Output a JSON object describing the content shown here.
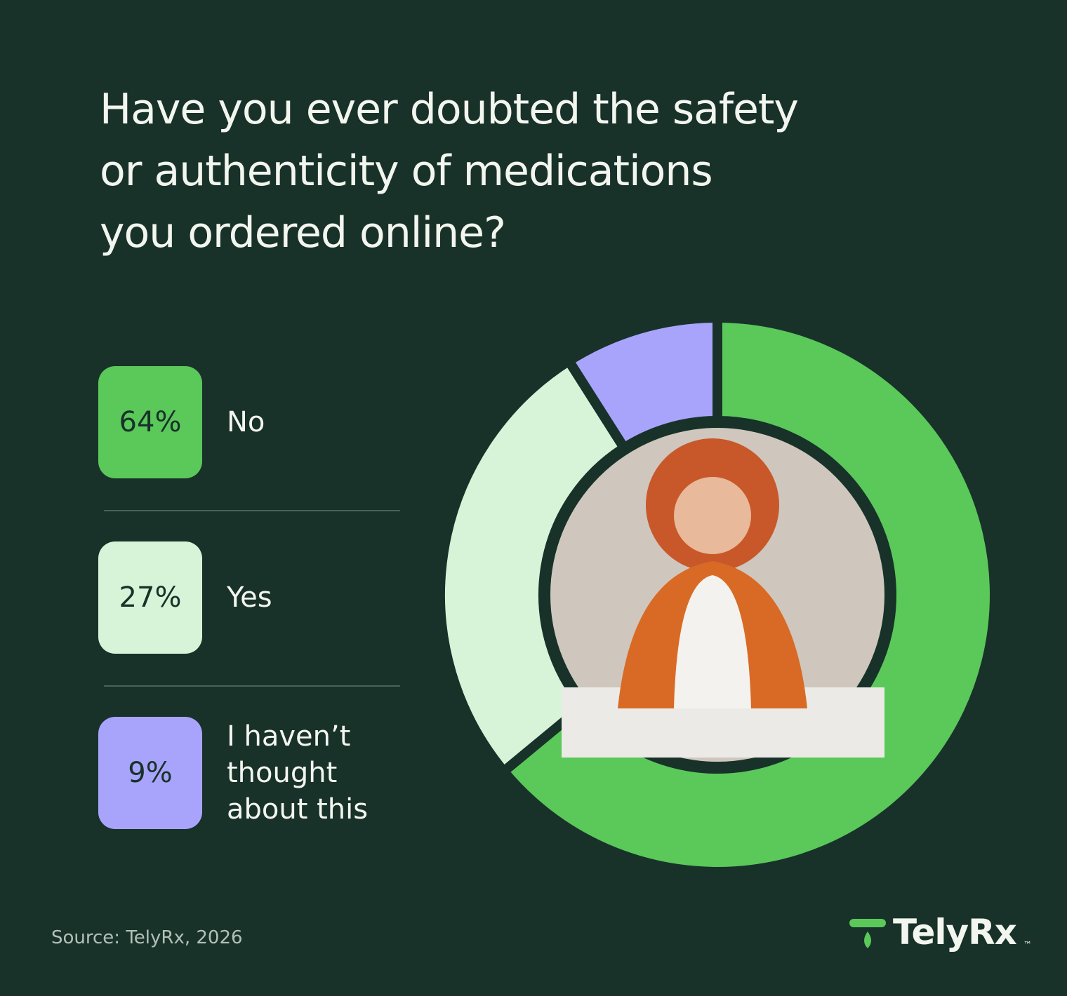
{
  "chart_data": {
    "type": "donut",
    "title": "Have you ever doubted the safety\nor authenticity of medications\nyou ordered online?",
    "categories": [
      "No",
      "Yes",
      "I haven’t\nthought\nabout this"
    ],
    "values": [
      64,
      27,
      9
    ],
    "value_labels": [
      "64%",
      "27%",
      "9%"
    ],
    "colors": [
      "#5bc85a",
      "#d8f4d8",
      "#a9a4fb"
    ],
    "source": "Source: TelyRx, 2026",
    "brand": "TelyRx",
    "brand_mark": "™"
  }
}
